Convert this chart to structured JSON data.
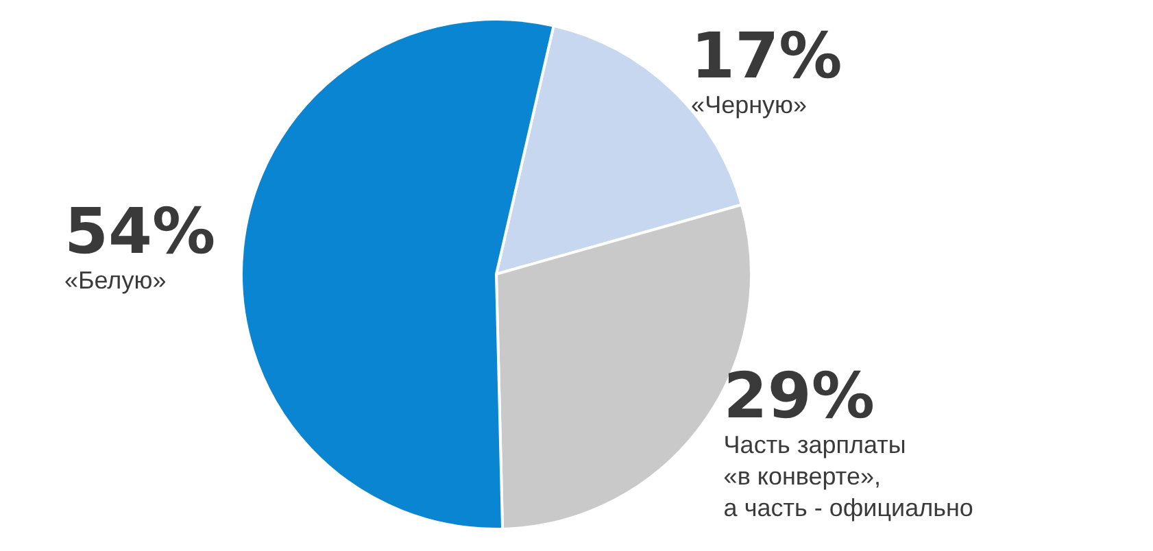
{
  "chart_data": {
    "type": "pie",
    "categories": [
      "«Черную»",
      "Часть зарплаты\n«в конверте»,\nа часть - официально",
      "«Белую»"
    ],
    "values": [
      17,
      29,
      54
    ],
    "value_labels": [
      "17%",
      "29%",
      "54%"
    ],
    "colors": [
      "#c6d7ef",
      "#c9c9c9",
      "#0a85d1"
    ],
    "legend": false
  }
}
